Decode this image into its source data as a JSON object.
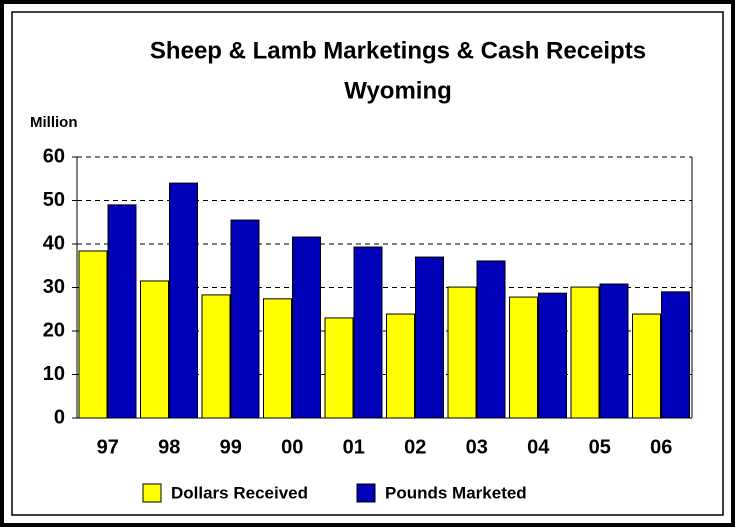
{
  "chart_data": {
    "type": "bar",
    "title": "Sheep & Lamb Marketings & Cash Receipts",
    "subtitle": "Wyoming",
    "y_label": "Million",
    "categories": [
      "97",
      "98",
      "99",
      "00",
      "01",
      "02",
      "03",
      "04",
      "05",
      "06"
    ],
    "series": [
      {
        "name": "Dollars Received",
        "color": "#ffff00",
        "values": [
          38.4,
          31.5,
          28.3,
          27.4,
          23,
          23.9,
          30.1,
          27.8,
          30.1,
          23.9
        ]
      },
      {
        "name": "Pounds Marketed",
        "color": "#0000b8",
        "values": [
          49,
          54,
          45.5,
          41.6,
          39.3,
          37,
          36.1,
          28.7,
          30.8,
          29
        ]
      }
    ],
    "ylim": [
      0,
      60
    ],
    "yticks": [
      0,
      10,
      20,
      30,
      40,
      50,
      60
    ],
    "grid": true,
    "legend": "bottom"
  }
}
